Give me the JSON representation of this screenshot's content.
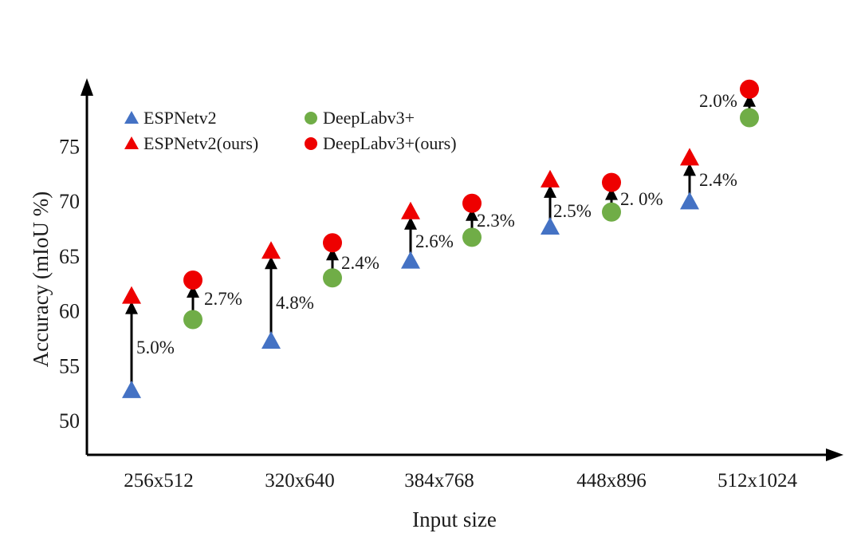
{
  "chart_data": {
    "type": "scatter",
    "title": "",
    "xlabel": "Input size",
    "ylabel": "Accuracy (mIoU %)",
    "ylim": [
      47.5,
      80.5
    ],
    "yticks": [
      50,
      55,
      60,
      65,
      70,
      75
    ],
    "grid": false,
    "legend_position": "top-left",
    "categories": [
      "256x512",
      "320x640",
      "384x768",
      "448x896",
      "512x1024"
    ],
    "series": [
      {
        "name": "ESPNetv2",
        "marker": "triangle",
        "color": "#4472C4",
        "values": [
          52.7,
          57.2,
          64.5,
          67.6,
          69.9
        ]
      },
      {
        "name": "ESPNetv2(ours)",
        "marker": "triangle",
        "color": "#EE0000",
        "values": [
          61.3,
          65.4,
          69.0,
          71.9,
          73.9
        ]
      },
      {
        "name": "DeepLabv3+",
        "marker": "circle",
        "color": "#70AD47",
        "values": [
          59.2,
          63.0,
          66.7,
          69.0,
          77.6
        ]
      },
      {
        "name": "DeepLabv3+(ours)",
        "marker": "circle",
        "color": "#EE0000",
        "values": [
          62.8,
          66.2,
          69.8,
          71.7,
          80.2
        ]
      }
    ],
    "improvements": [
      {
        "model": "ESPNetv2",
        "category": "256x512",
        "label": "5.0%"
      },
      {
        "model": "DeepLabv3+",
        "category": "256x512",
        "label": "2.7%"
      },
      {
        "model": "ESPNetv2",
        "category": "320x640",
        "label": "4.8%"
      },
      {
        "model": "DeepLabv3+",
        "category": "320x640",
        "label": "2.4%"
      },
      {
        "model": "ESPNetv2",
        "category": "384x768",
        "label": "2.6%"
      },
      {
        "model": "DeepLabv3+",
        "category": "384x768",
        "label": "2.3%"
      },
      {
        "model": "ESPNetv2",
        "category": "448x896",
        "label": "2.5%"
      },
      {
        "model": "DeepLabv3+",
        "category": "448x896",
        "label": "2. 0%"
      },
      {
        "model": "ESPNetv2",
        "category": "512x1024",
        "label": "2.4%"
      },
      {
        "model": "DeepLabv3+",
        "category": "512x1024",
        "label": "2.0%"
      }
    ]
  }
}
